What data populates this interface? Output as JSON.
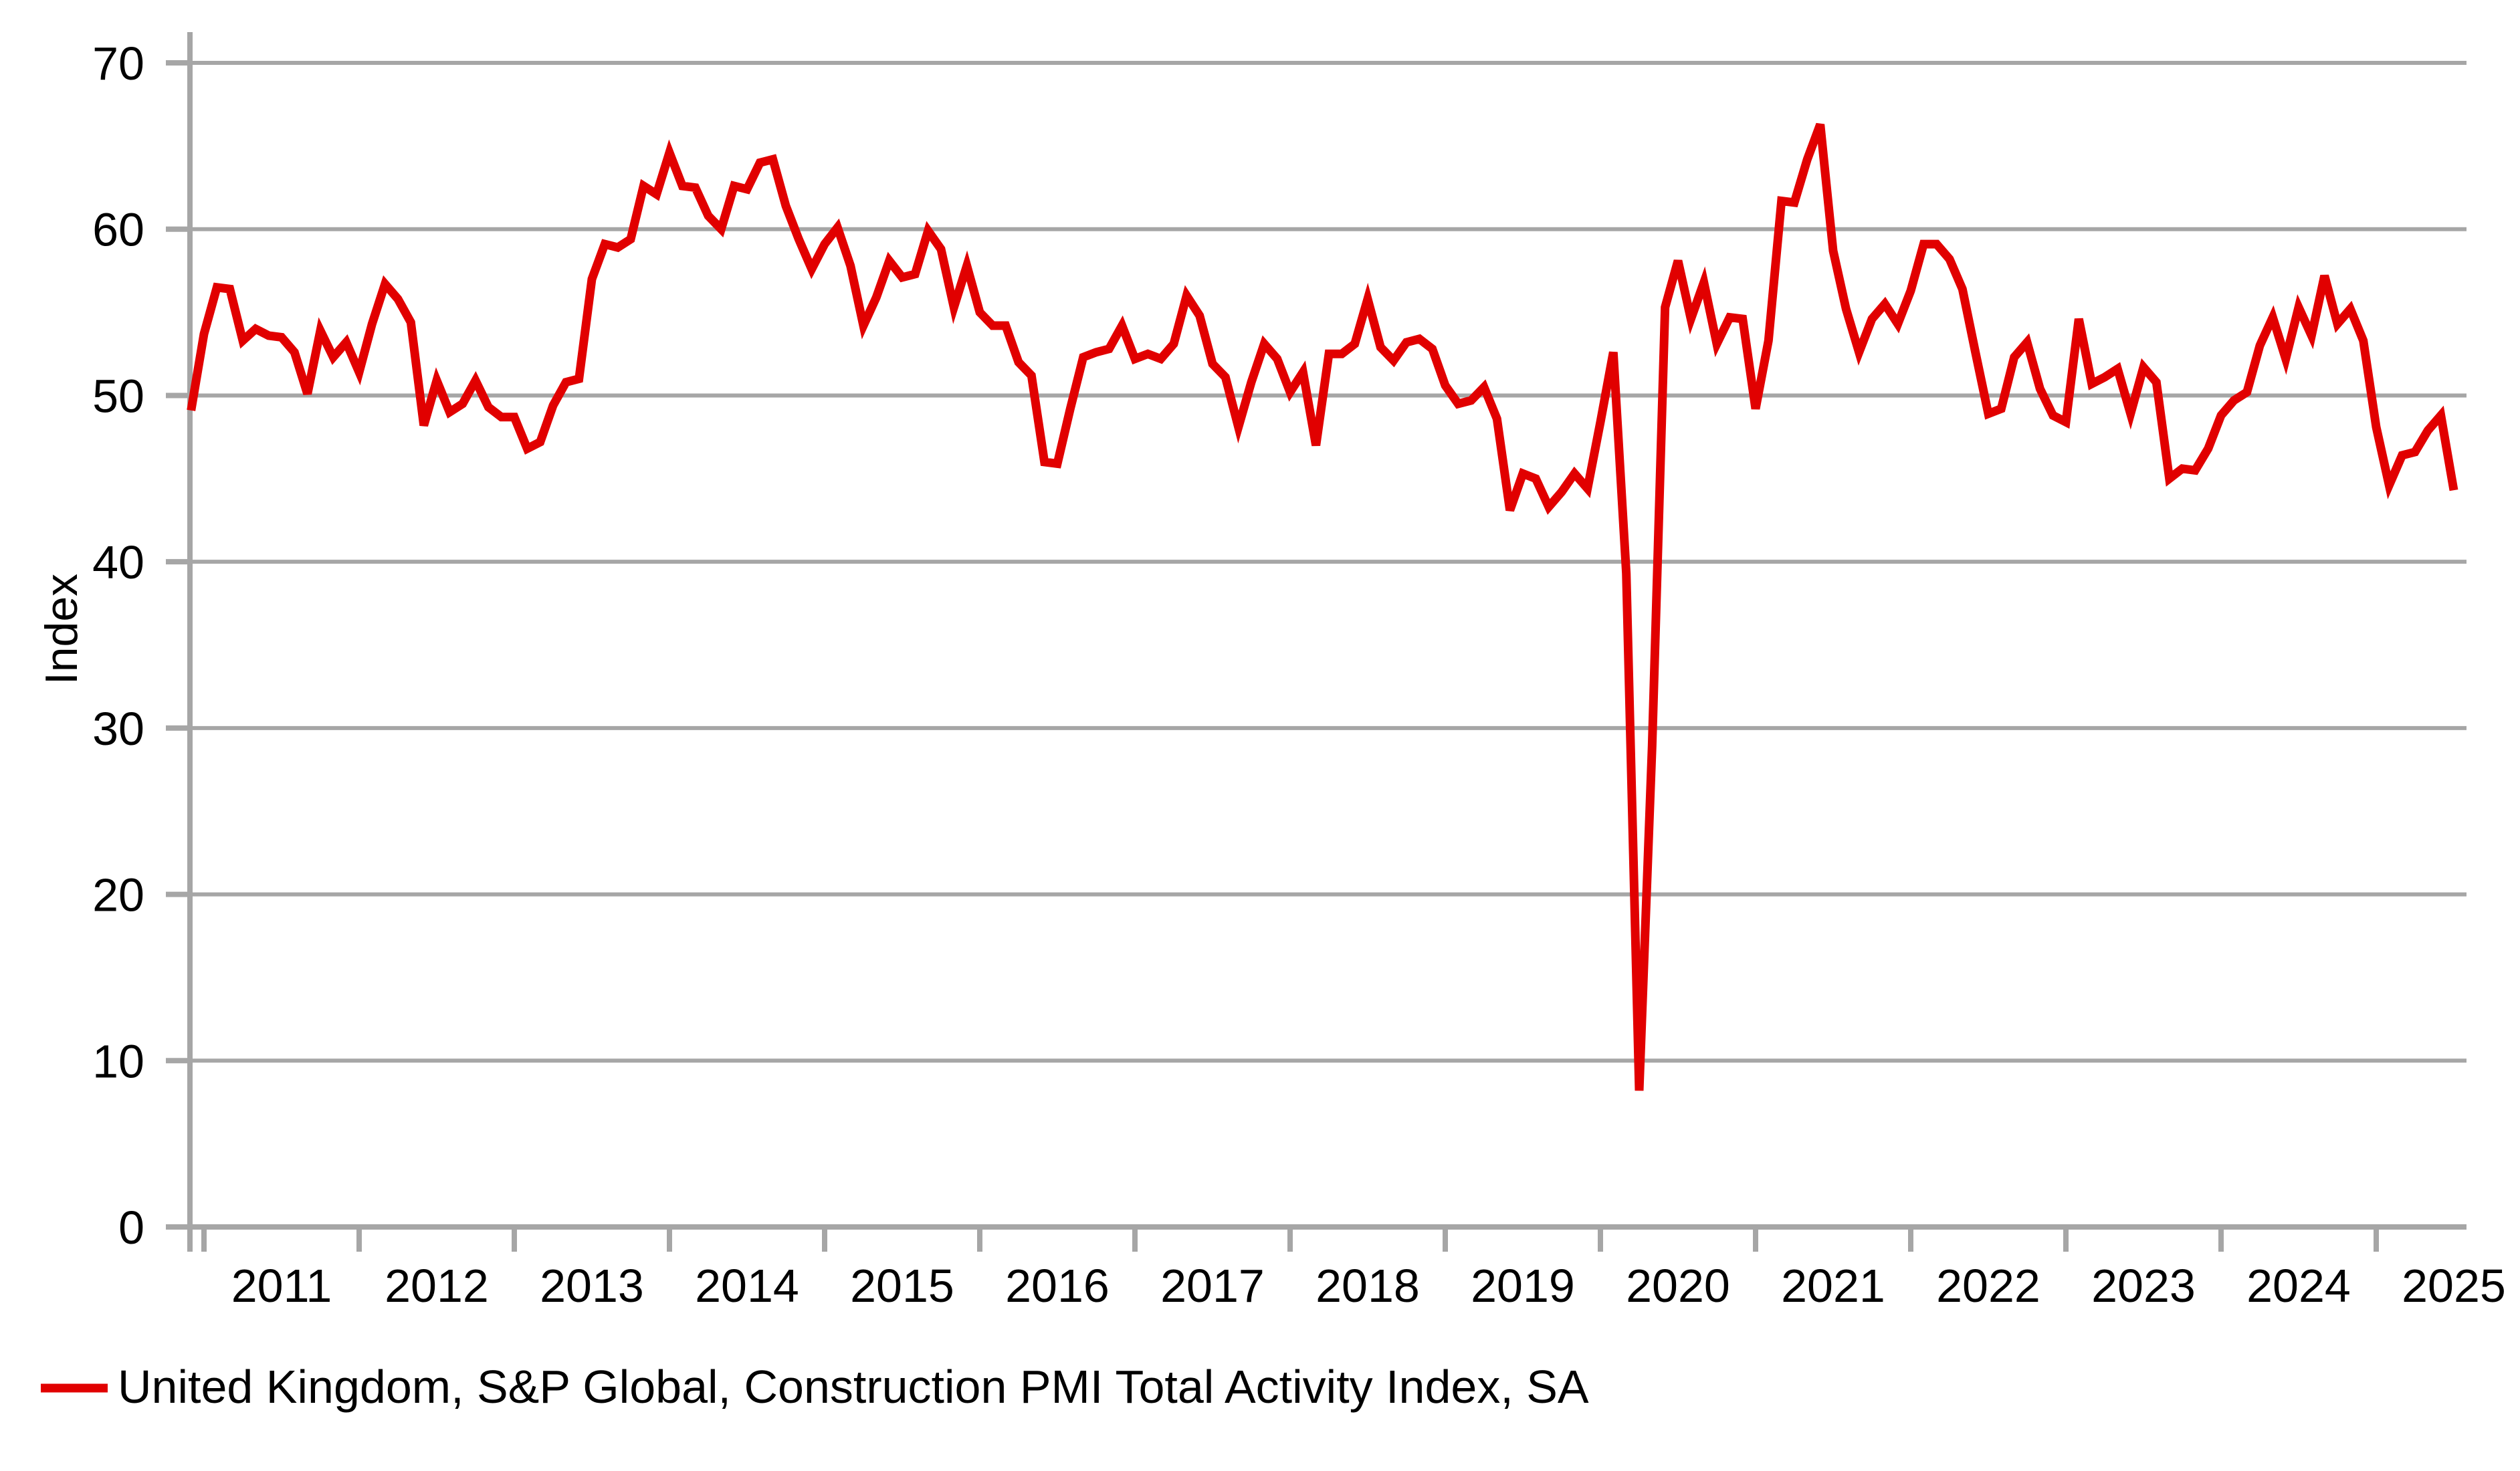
{
  "chart_data": {
    "type": "line",
    "title": "",
    "xlabel": "",
    "ylabel": "Index",
    "ylim": [
      0,
      70
    ],
    "yticks": [
      0,
      10,
      20,
      30,
      40,
      50,
      60,
      70
    ],
    "xtick_year_labels": [
      "2011",
      "2012",
      "2013",
      "2014",
      "2015",
      "2016",
      "2017",
      "2018",
      "2019",
      "2020",
      "2021",
      "2022",
      "2023",
      "2024",
      "2025"
    ],
    "grid": "horizontal",
    "legend_position": "bottom-left",
    "x_frequency": "monthly",
    "x_start": "2010-12",
    "x_end": "2025-07",
    "series": [
      {
        "name": "United Kingdom, S&P Global, Construction PMI Total Activity Index, SA",
        "color": "#e10000",
        "values": [
          49.1,
          53.7,
          56.5,
          56.4,
          53.3,
          54.0,
          53.6,
          53.5,
          52.6,
          50.1,
          53.9,
          52.3,
          53.2,
          51.4,
          54.3,
          56.7,
          55.8,
          54.4,
          48.2,
          50.9,
          49.0,
          49.5,
          50.9,
          49.3,
          48.7,
          48.7,
          46.8,
          47.2,
          49.4,
          50.8,
          51.0,
          57.0,
          59.1,
          58.9,
          59.4,
          62.6,
          62.1,
          64.6,
          62.6,
          62.5,
          60.8,
          60.0,
          62.6,
          62.4,
          64.0,
          64.2,
          61.4,
          59.4,
          57.6,
          59.1,
          60.1,
          57.8,
          54.2,
          55.9,
          58.1,
          57.1,
          57.3,
          59.9,
          58.8,
          55.3,
          57.8,
          55.0,
          54.2,
          54.2,
          52.0,
          51.2,
          46.0,
          45.9,
          49.2,
          52.3,
          52.6,
          52.8,
          54.2,
          52.2,
          52.5,
          52.2,
          53.1,
          56.0,
          54.8,
          51.9,
          51.1,
          48.1,
          50.8,
          53.1,
          52.2,
          50.2,
          51.4,
          47.0,
          52.5,
          52.5,
          53.1,
          55.8,
          52.9,
          52.1,
          53.2,
          53.4,
          52.8,
          50.6,
          49.5,
          49.7,
          50.5,
          48.6,
          43.1,
          45.3,
          45.0,
          43.3,
          44.2,
          45.3,
          44.4,
          48.4,
          52.6,
          39.3,
          8.2,
          28.9,
          55.3,
          58.1,
          54.6,
          56.8,
          53.1,
          54.7,
          54.6,
          49.2,
          53.3,
          61.7,
          61.6,
          64.2,
          66.3,
          58.7,
          55.2,
          52.6,
          54.6,
          55.5,
          54.3,
          56.3,
          59.1,
          59.1,
          58.2,
          56.4,
          52.6,
          48.9,
          49.2,
          52.3,
          53.2,
          50.4,
          48.8,
          48.4,
          54.6,
          50.7,
          51.1,
          51.6,
          48.9,
          51.7,
          50.8,
          45.0,
          45.6,
          45.5,
          46.8,
          48.8,
          49.7,
          50.2,
          53.0,
          54.7,
          52.2,
          55.3,
          53.6,
          57.2,
          54.3,
          55.2,
          53.3,
          48.1,
          44.6,
          46.4,
          46.6,
          47.9,
          48.8,
          44.3
        ]
      }
    ]
  },
  "legend": {
    "label": "United Kingdom, S&P Global, Construction PMI Total Activity Index, SA"
  },
  "colors": {
    "line": "#e10000",
    "grid": "#a6a6a6",
    "axis": "#a6a6a6",
    "text": "#000000",
    "background": "#ffffff"
  }
}
